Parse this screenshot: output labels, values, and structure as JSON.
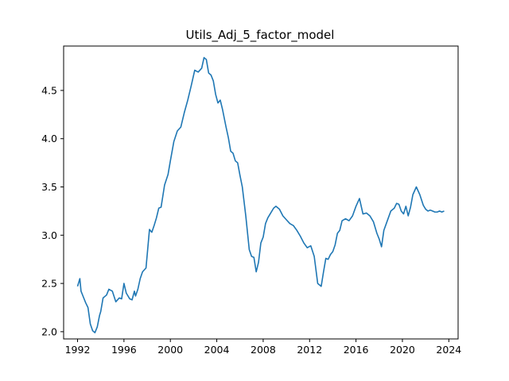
{
  "chart_data": {
    "type": "line",
    "title": "Utils_Adj_5_factor_model",
    "xlabel": "",
    "ylabel": "",
    "xlim": [
      1990.8,
      2024.8
    ],
    "ylim": [
      1.925,
      4.96
    ],
    "x_ticks": [
      1992,
      1996,
      2000,
      2004,
      2008,
      2012,
      2016,
      2020,
      2024
    ],
    "x_tick_labels": [
      "1992",
      "1996",
      "2000",
      "2004",
      "2008",
      "2012",
      "2016",
      "2020",
      "2024"
    ],
    "y_ticks": [
      2.0,
      2.5,
      3.0,
      3.5,
      4.0,
      4.5
    ],
    "y_tick_labels": [
      "2.0",
      "2.5",
      "3.0",
      "3.5",
      "4.0",
      "4.5"
    ],
    "grid": false,
    "series": [
      {
        "color": "#1f77b4",
        "x": [
          1992.0,
          1992.2,
          1992.3,
          1992.5,
          1992.7,
          1992.9,
          1993.1,
          1993.3,
          1993.5,
          1993.7,
          1993.9,
          1994.0,
          1994.2,
          1994.5,
          1994.7,
          1995.0,
          1995.3,
          1995.6,
          1995.8,
          1996.0,
          1996.2,
          1996.5,
          1996.7,
          1996.9,
          1997.0,
          1997.2,
          1997.4,
          1997.6,
          1997.9,
          1998.2,
          1998.4,
          1998.6,
          1998.8,
          1999.0,
          1999.2,
          1999.5,
          1999.8,
          2000.0,
          2000.3,
          2000.6,
          2000.9,
          2001.2,
          2001.5,
          2001.8,
          2002.1,
          2002.4,
          2002.7,
          2002.9,
          2003.1,
          2003.3,
          2003.5,
          2003.7,
          2003.9,
          2004.1,
          2004.3,
          2004.5,
          2004.8,
          2005.0,
          2005.2,
          2005.4,
          2005.6,
          2005.8,
          2006.0,
          2006.2,
          2006.5,
          2006.8,
          2007.0,
          2007.2,
          2007.4,
          2007.6,
          2007.8,
          2008.0,
          2008.2,
          2008.4,
          2008.6,
          2008.9,
          2009.1,
          2009.4,
          2009.7,
          2010.0,
          2010.3,
          2010.6,
          2010.9,
          2011.2,
          2011.5,
          2011.8,
          2012.1,
          2012.4,
          2012.7,
          2013.0,
          2013.2,
          2013.4,
          2013.6,
          2013.8,
          2014.0,
          2014.2,
          2014.4,
          2014.6,
          2014.8,
          2015.1,
          2015.4,
          2015.7,
          2016.0,
          2016.3,
          2016.6,
          2016.9,
          2017.2,
          2017.5,
          2017.8,
          2018.0,
          2018.2,
          2018.4,
          2018.7,
          2019.0,
          2019.3,
          2019.5,
          2019.7,
          2019.9,
          2020.1,
          2020.3,
          2020.5,
          2020.7,
          2020.9,
          2021.2,
          2021.5,
          2021.8,
          2022.0,
          2022.2,
          2022.4,
          2022.6,
          2022.8,
          2023.0,
          2023.2,
          2023.4,
          2023.6
        ],
        "values": [
          2.47,
          2.55,
          2.42,
          2.36,
          2.3,
          2.25,
          2.08,
          2.01,
          1.99,
          2.05,
          2.17,
          2.21,
          2.35,
          2.38,
          2.44,
          2.42,
          2.31,
          2.35,
          2.34,
          2.5,
          2.4,
          2.34,
          2.33,
          2.42,
          2.37,
          2.44,
          2.55,
          2.62,
          2.66,
          3.06,
          3.03,
          3.1,
          3.18,
          3.28,
          3.29,
          3.52,
          3.63,
          3.77,
          3.97,
          4.08,
          4.12,
          4.27,
          4.4,
          4.55,
          4.71,
          4.69,
          4.73,
          4.84,
          4.82,
          4.68,
          4.66,
          4.6,
          4.46,
          4.37,
          4.4,
          4.3,
          4.12,
          4.01,
          3.87,
          3.85,
          3.77,
          3.75,
          3.62,
          3.5,
          3.2,
          2.85,
          2.78,
          2.77,
          2.62,
          2.72,
          2.92,
          2.98,
          3.12,
          3.18,
          3.22,
          3.28,
          3.3,
          3.27,
          3.2,
          3.16,
          3.12,
          3.1,
          3.05,
          2.99,
          2.92,
          2.87,
          2.89,
          2.78,
          2.5,
          2.47,
          2.62,
          2.76,
          2.75,
          2.8,
          2.83,
          2.9,
          3.02,
          3.05,
          3.15,
          3.17,
          3.15,
          3.2,
          3.3,
          3.38,
          3.22,
          3.23,
          3.2,
          3.14,
          3.02,
          2.96,
          2.88,
          3.05,
          3.15,
          3.25,
          3.28,
          3.33,
          3.32,
          3.25,
          3.22,
          3.3,
          3.2,
          3.29,
          3.42,
          3.5,
          3.42,
          3.31,
          3.27,
          3.25,
          3.26,
          3.25,
          3.24,
          3.24,
          3.25,
          3.24,
          3.25
        ]
      }
    ]
  }
}
